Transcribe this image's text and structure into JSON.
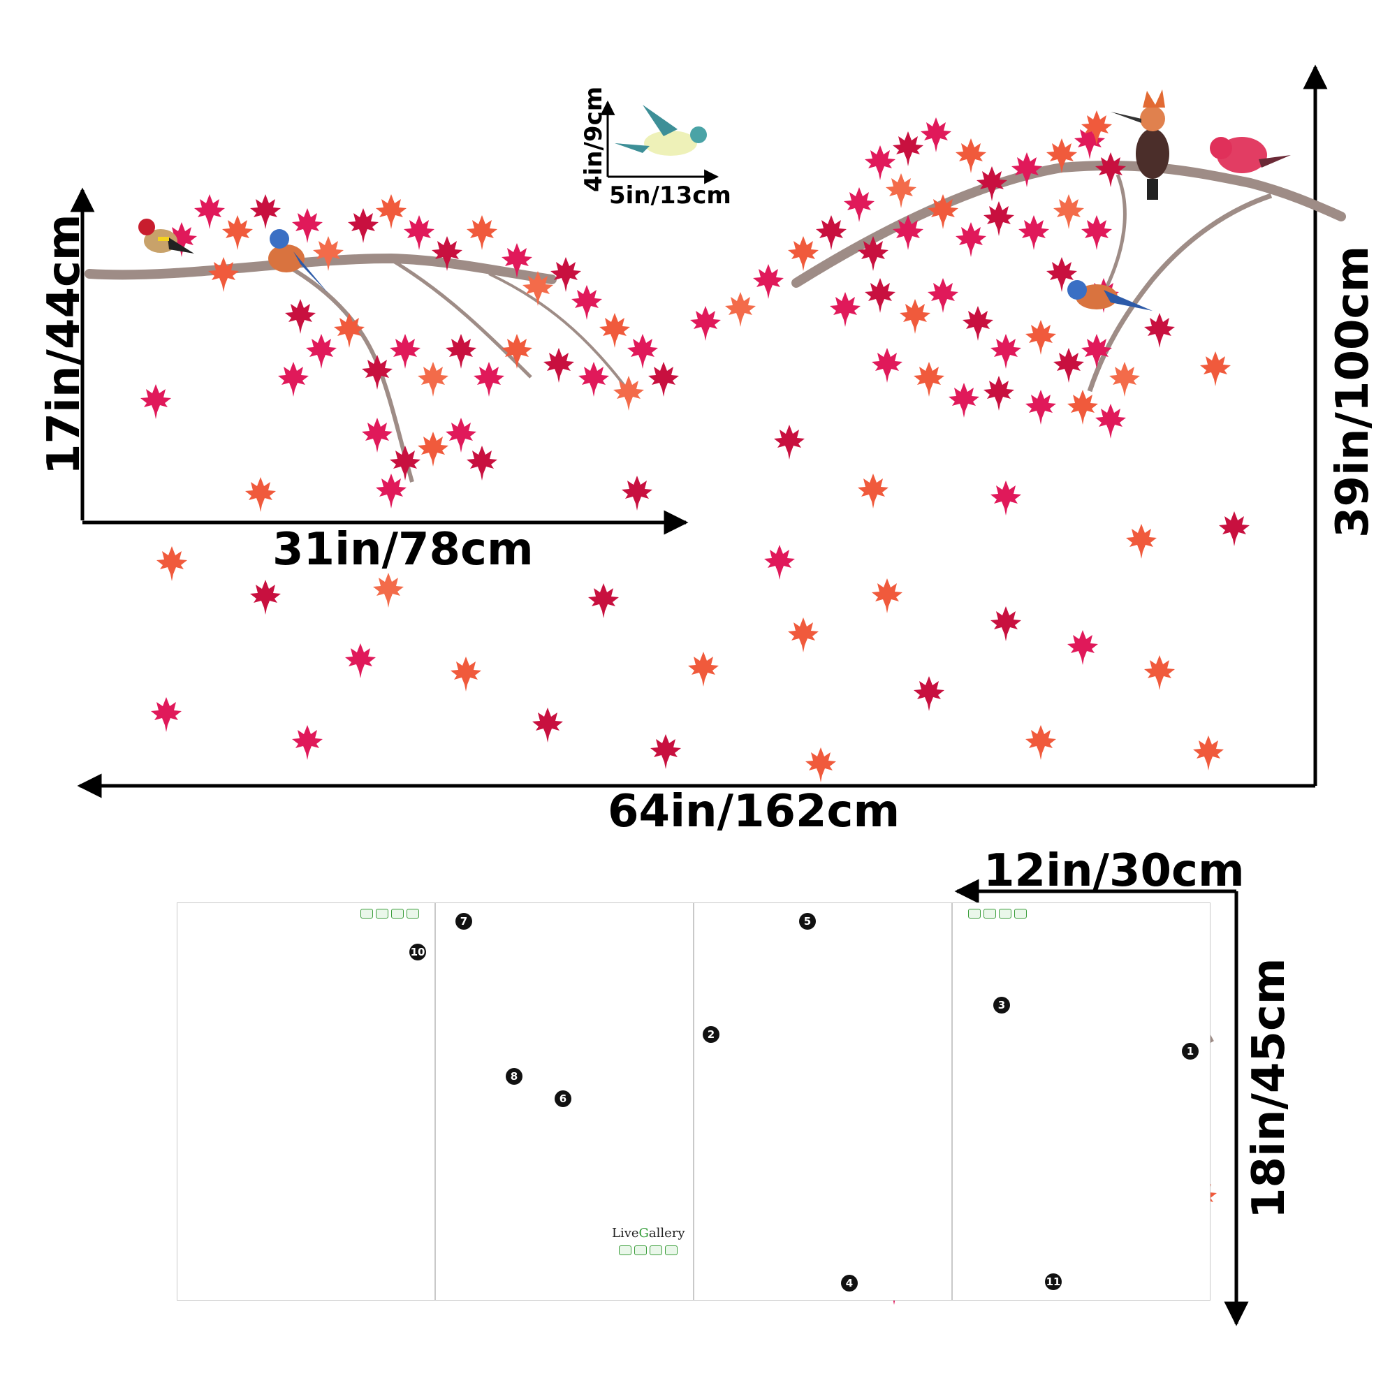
{
  "dimensions": {
    "top_width": "64in/162cm",
    "top_height": "39in/100cm",
    "left_branch_width": "31in/78cm",
    "left_branch_height": "17in/44cm",
    "bird_width": "5in/13cm",
    "bird_height": "4in/9cm",
    "sheet_width": "12in/30cm",
    "sheet_height": "18in/45cm"
  },
  "sheets": [
    {
      "numbers": [
        "10"
      ]
    },
    {
      "numbers": [
        "7",
        "8",
        "6"
      ],
      "brand": {
        "prefix": "Live",
        "accent": "G",
        "suffix": "allery"
      }
    },
    {
      "numbers": [
        "5",
        "2",
        "4"
      ]
    },
    {
      "numbers": [
        "3",
        "1",
        "11"
      ]
    }
  ],
  "colors": {
    "leaf_red": "#e0195a",
    "leaf_crimson": "#c8103f",
    "leaf_orange": "#f05a3c",
    "leaf_coral": "#f36b4a",
    "branch": "#9e8c86",
    "arrow": "#000000"
  },
  "icons": [
    "maple-leaf-icon",
    "bird-icon",
    "hoopoe-icon",
    "goldfinch-icon",
    "bluebird-icon",
    "finch-icon"
  ]
}
